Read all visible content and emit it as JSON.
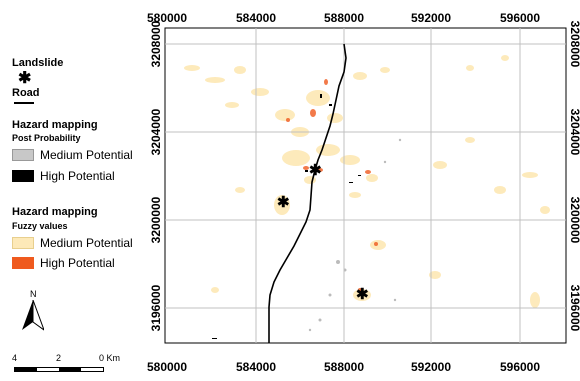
{
  "legend": {
    "landslide_title": "Landslide",
    "road_title": "Road",
    "hazard1_title": "Hazard mapping",
    "hazard1_sub": "Post Probability",
    "hazard1_items": [
      {
        "label": "Medium Potential",
        "color": "#c8c8c8"
      },
      {
        "label": "High Potential",
        "color": "#000000"
      }
    ],
    "hazard2_title": "Hazard mapping",
    "hazard2_sub": "Fuzzy values",
    "hazard2_items": [
      {
        "label": "Medium Potential",
        "color": "#fde9b8"
      },
      {
        "label": "High Potential",
        "color": "#ef5a1e"
      }
    ],
    "north": "N",
    "scale": {
      "left": "4",
      "mid": "2",
      "right": "0 Km"
    }
  },
  "map": {
    "x_ticks_top": [
      "580000",
      "584000",
      "588000",
      "592000",
      "596000"
    ],
    "x_ticks_bottom": [
      "580000",
      "584000",
      "588000",
      "592000",
      "596000"
    ],
    "y_ticks_left": [
      "3208000",
      "3204000",
      "3200000",
      "3196000"
    ],
    "y_ticks_right": [
      "3208000",
      "3204000",
      "3200000",
      "3196000"
    ]
  }
}
